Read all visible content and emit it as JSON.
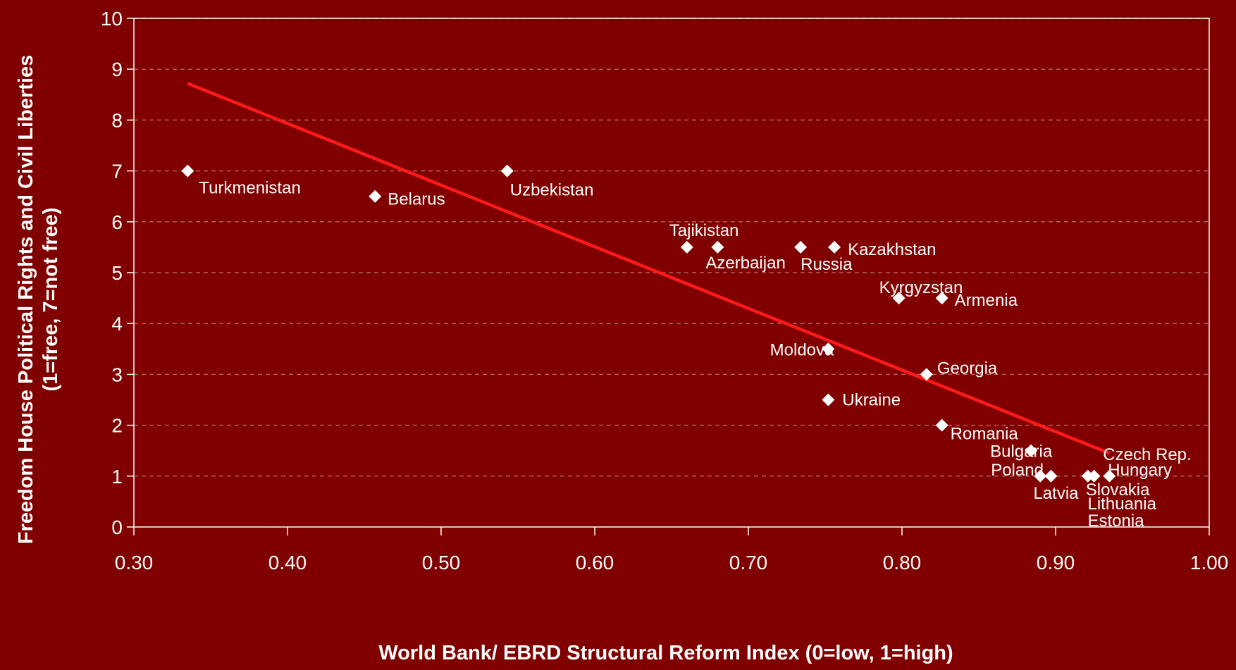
{
  "chart_data": {
    "type": "scatter",
    "title": "",
    "xlabel": "World Bank/ EBRD Structural Reform Index (0=low, 1=high)",
    "ylabel_line1": "Freedom House Political Rights and Civil Liberties",
    "ylabel_line2": "(1=free, 7=not free)",
    "xlim": [
      0.3,
      1.0
    ],
    "ylim": [
      0,
      10
    ],
    "x_ticks": [
      "0.30",
      "0.40",
      "0.50",
      "0.60",
      "0.70",
      "0.80",
      "0.90",
      "1.00"
    ],
    "y_ticks": [
      "0",
      "1",
      "2",
      "3",
      "4",
      "5",
      "6",
      "7",
      "8",
      "9",
      "10"
    ],
    "grid": "horizontal dashed",
    "legend": "none",
    "colors": {
      "background": "#800000",
      "points": "#ffffff",
      "trendline": "#ff1a1a",
      "grid": "#b06060"
    },
    "points": [
      {
        "label": "Turkmenistan",
        "x": 0.335,
        "y": 7.0
      },
      {
        "label": "Belarus",
        "x": 0.457,
        "y": 6.5
      },
      {
        "label": "Uzbekistan",
        "x": 0.543,
        "y": 7.0
      },
      {
        "label": "Tajikistan",
        "x": 0.66,
        "y": 5.5
      },
      {
        "label": "Azerbaijan",
        "x": 0.68,
        "y": 5.5
      },
      {
        "label": "Russia",
        "x": 0.734,
        "y": 5.5
      },
      {
        "label": "Kazakhstan",
        "x": 0.756,
        "y": 5.5
      },
      {
        "label": "Kyrgyzstan",
        "x": 0.798,
        "y": 4.5
      },
      {
        "label": "Armenia",
        "x": 0.826,
        "y": 4.5
      },
      {
        "label": "Moldova",
        "x": 0.752,
        "y": 3.5
      },
      {
        "label": "Georgia",
        "x": 0.816,
        "y": 3.0
      },
      {
        "label": "Ukraine",
        "x": 0.752,
        "y": 2.5
      },
      {
        "label": "Romania",
        "x": 0.826,
        "y": 2.0
      },
      {
        "label": "Bulgaria",
        "x": 0.884,
        "y": 1.5
      },
      {
        "label": "Poland",
        "x": 0.89,
        "y": 1.0
      },
      {
        "label": "Latvia",
        "x": 0.897,
        "y": 1.0
      },
      {
        "label": "Slovakia",
        "x": 0.921,
        "y": 1.0
      },
      {
        "label": "Lithuania",
        "x": 0.925,
        "y": 1.0
      },
      {
        "label": "Czech Rep.",
        "x": 0.935,
        "y": 1.0
      },
      {
        "label": "Hungary",
        "x": 0.935,
        "y": 1.0
      },
      {
        "label": "Estonia",
        "x": 0.925,
        "y": 1.0
      }
    ],
    "trendline": {
      "x": [
        0.335,
        0.935
      ],
      "y": [
        8.72,
        1.45
      ]
    }
  }
}
